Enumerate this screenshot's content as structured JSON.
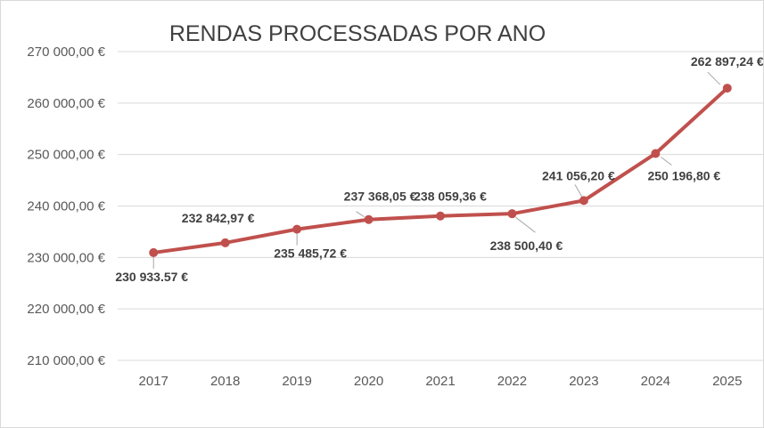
{
  "chart_data": {
    "type": "line",
    "title": "RENDAS PROCESSADAS POR ANO",
    "xlabel": "",
    "ylabel": "",
    "categories": [
      "2017",
      "2018",
      "2019",
      "2020",
      "2021",
      "2022",
      "2023",
      "2024",
      "2025"
    ],
    "series": [
      {
        "values": [
          230933.57,
          232842.97,
          235485.72,
          237368.05,
          238059.36,
          238500.4,
          241056.2,
          250196.8,
          262897.24
        ],
        "labels": [
          "230 933.57 €",
          "232 842,97 €",
          "235 485,72 €",
          "237 368,05 €",
          "238 059,36 €",
          "238 500,40 €",
          "241 056,20 €",
          "250 196,80 €",
          "262 897,24 €"
        ]
      }
    ],
    "ylim": [
      210000,
      270000
    ],
    "yticks": [
      210000,
      220000,
      230000,
      240000,
      250000,
      260000,
      270000
    ],
    "ytick_labels": [
      "210 000,00 €",
      "220 000,00 €",
      "230 000,00 €",
      "240 000,00 €",
      "250 000,00 €",
      "260 000,00 €",
      "270 000,00 €"
    ],
    "grid": true,
    "legend": "none",
    "line_color": "#c0504d",
    "grid_color": "#d9d9d9"
  }
}
